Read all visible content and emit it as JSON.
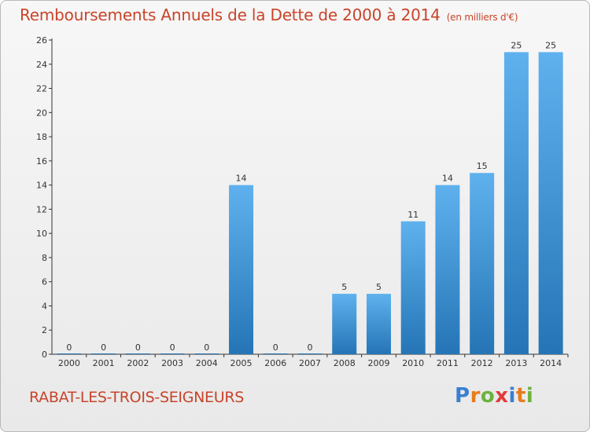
{
  "header": {
    "title": "Remboursements Annuels de la Dette de 2000 à 2014",
    "subtitle": "(en milliers d'€)"
  },
  "footer": {
    "city": "RABAT-LES-TROIS-SEIGNEURS",
    "brand_letters": [
      "P",
      "r",
      "o",
      "x",
      "i",
      "t",
      "i"
    ],
    "brand_colors": [
      "#3a7fd0",
      "#e87b1c",
      "#6cb33e",
      "#e23b3b",
      "#3a7fd0",
      "#e87b1c",
      "#6cb33e"
    ]
  },
  "chart_data": {
    "type": "bar",
    "title": "Remboursements Annuels de la Dette de 2000 à 2014",
    "subtitle": "(en milliers d'€)",
    "xlabel": "",
    "ylabel": "",
    "categories": [
      "2000",
      "2001",
      "2002",
      "2003",
      "2004",
      "2005",
      "2006",
      "2007",
      "2008",
      "2009",
      "2010",
      "2011",
      "2012",
      "2013",
      "2014"
    ],
    "values": [
      0,
      0,
      0,
      0,
      0,
      14,
      0,
      0,
      5,
      5,
      11,
      14,
      15,
      25,
      25
    ],
    "data_labels": [
      "0",
      "0",
      "0",
      "0",
      "0",
      "14",
      "0",
      "0",
      "5",
      "5",
      "11",
      "14",
      "15",
      "25",
      "25"
    ],
    "ylim": [
      0,
      26
    ],
    "yticks": [
      0,
      2,
      4,
      6,
      8,
      10,
      12,
      14,
      16,
      18,
      20,
      22,
      24,
      26
    ],
    "grid": false,
    "legend": "none",
    "colors": {
      "bar_top": "#5fb1ee",
      "bar_bottom": "#2575b6",
      "axis": "#333333"
    }
  }
}
